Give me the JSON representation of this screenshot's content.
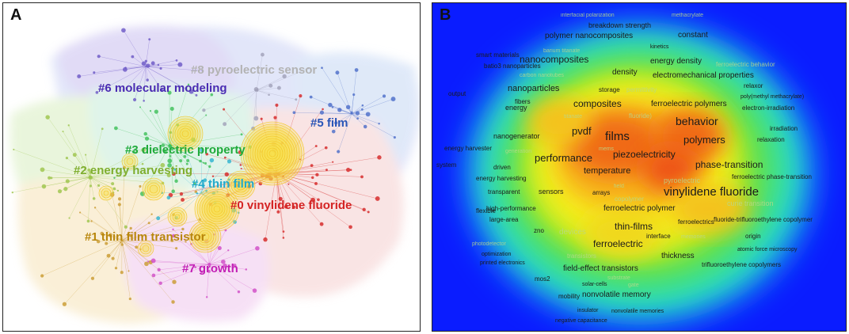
{
  "panel_a": {
    "letter": "A",
    "clusters": [
      {
        "id": "c0",
        "label": "#0 vinylidene fluoride",
        "color": "#d42323"
      },
      {
        "id": "c1",
        "label": "#1 thin film transistor",
        "color": "#b8860b"
      },
      {
        "id": "c2",
        "label": "#2 energy harvesting",
        "color": "#7fae2e"
      },
      {
        "id": "c3",
        "label": "#3 dielectric property",
        "color": "#1faa3a"
      },
      {
        "id": "c4",
        "label": "#4 thin film",
        "color": "#22aacc"
      },
      {
        "id": "c5",
        "label": "#5 film",
        "color": "#2a56b8"
      },
      {
        "id": "c6",
        "label": "#6 molecular modeling",
        "color": "#4a2bb3"
      },
      {
        "id": "c7",
        "label": "#7 growth",
        "color": "#c21fb5"
      },
      {
        "id": "c8",
        "label": "#8 pyroelectric sensor",
        "color": "#b3b3b3"
      }
    ]
  },
  "panel_b": {
    "letter": "B",
    "keywords": [
      {
        "t": "interfacial polarization",
        "s": 7
      },
      {
        "t": "methacrylate",
        "s": 7
      },
      {
        "t": "breakdown strength",
        "s": 9
      },
      {
        "t": "polymer nanocomposites",
        "s": 10
      },
      {
        "t": "constant",
        "s": 10
      },
      {
        "t": "kinetics",
        "s": 7
      },
      {
        "t": "smart materials",
        "s": 8
      },
      {
        "t": "barium titanate",
        "s": 7
      },
      {
        "t": "batio3 nanoparticles",
        "s": 8
      },
      {
        "t": "carbon nanotubes",
        "s": 7
      },
      {
        "t": "nanocomposites",
        "s": 12
      },
      {
        "t": "energy density",
        "s": 10
      },
      {
        "t": "ferroelectric behavior",
        "s": 8
      },
      {
        "t": "density",
        "s": 10
      },
      {
        "t": "electromechanical properties",
        "s": 10
      },
      {
        "t": "relaxor",
        "s": 8
      },
      {
        "t": "output",
        "s": 8
      },
      {
        "t": "nanoparticles",
        "s": 11
      },
      {
        "t": "storage",
        "s": 8
      },
      {
        "t": "permittivity",
        "s": 8
      },
      {
        "t": "poly(methyl methacrylate)",
        "s": 7
      },
      {
        "t": "fibers",
        "s": 8
      },
      {
        "t": "composites",
        "s": 12
      },
      {
        "t": "ferroelectric polymers",
        "s": 10
      },
      {
        "t": "electron-irradiation",
        "s": 8
      },
      {
        "t": "energy",
        "s": 9
      },
      {
        "t": "titanate",
        "s": 7
      },
      {
        "t": "fluoride)",
        "s": 8
      },
      {
        "t": "behavior",
        "s": 14
      },
      {
        "t": "pvdf",
        "s": 13
      },
      {
        "t": "films",
        "s": 15
      },
      {
        "t": "irradiation",
        "s": 8
      },
      {
        "t": "nanogenerator",
        "s": 9
      },
      {
        "t": "polymers",
        "s": 13
      },
      {
        "t": "relaxation",
        "s": 8
      },
      {
        "t": "energy harvester",
        "s": 8
      },
      {
        "t": "generation",
        "s": 7
      },
      {
        "t": "mems",
        "s": 7
      },
      {
        "t": "piezoelectricity",
        "s": 12
      },
      {
        "t": "performance",
        "s": 13
      },
      {
        "t": "phase-transition",
        "s": 12
      },
      {
        "t": "system",
        "s": 8
      },
      {
        "t": "driven",
        "s": 8
      },
      {
        "t": "temperature",
        "s": 11
      },
      {
        "t": "pyroelectric",
        "s": 9
      },
      {
        "t": "ferroelectric phase-transition",
        "s": 8
      },
      {
        "t": "energy harvesting",
        "s": 8
      },
      {
        "t": "field",
        "s": 7
      },
      {
        "t": "vinylidene fluoride",
        "s": 15
      },
      {
        "t": "transparent",
        "s": 8
      },
      {
        "t": "sensors",
        "s": 9
      },
      {
        "t": "arrays",
        "s": 8
      },
      {
        "t": "copolymer",
        "s": 8
      },
      {
        "t": "curie transition",
        "s": 9
      },
      {
        "t": "flexible",
        "s": 8
      },
      {
        "t": "high-performance",
        "s": 8
      },
      {
        "t": "ferroelectric polymer",
        "s": 10
      },
      {
        "t": "large-area",
        "s": 8
      },
      {
        "t": "thin-films",
        "s": 12
      },
      {
        "t": "ferroelectrics",
        "s": 8
      },
      {
        "t": "fluoride-trifluoroethylene copolymer",
        "s": 8
      },
      {
        "t": "zno",
        "s": 8
      },
      {
        "t": "devices",
        "s": 10
      },
      {
        "t": "interface",
        "s": 8
      },
      {
        "t": "memories",
        "s": 7
      },
      {
        "t": "origin",
        "s": 8
      },
      {
        "t": "photodetector",
        "s": 7
      },
      {
        "t": "optimization",
        "s": 7
      },
      {
        "t": "ferroelectric",
        "s": 12
      },
      {
        "t": "atomic force microscopy",
        "s": 7
      },
      {
        "t": "printed electronics",
        "s": 7
      },
      {
        "t": "transistors",
        "s": 8
      },
      {
        "t": "thickness",
        "s": 10
      },
      {
        "t": "field-effect transistors",
        "s": 10
      },
      {
        "t": "trifluoroethylene copolymers",
        "s": 8
      },
      {
        "t": "mos2",
        "s": 8
      },
      {
        "t": "substrate",
        "s": 7
      },
      {
        "t": "solar-cells",
        "s": 7
      },
      {
        "t": "gate",
        "s": 7
      },
      {
        "t": "nonvolatile memory",
        "s": 10
      },
      {
        "t": "mobility",
        "s": 8
      },
      {
        "t": "insulator",
        "s": 7
      },
      {
        "t": "nonvolatile memories",
        "s": 7
      },
      {
        "t": "negative capacitance",
        "s": 7
      }
    ]
  }
}
